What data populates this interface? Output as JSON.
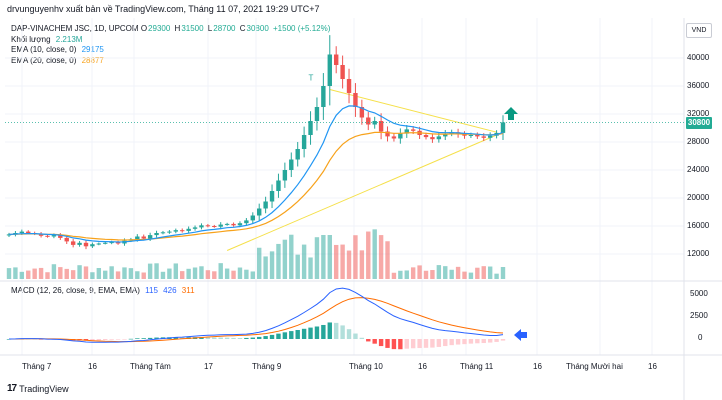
{
  "header": {
    "title": "drvunguyenhv xuất bản về TradingView.com, Tháng 11 07, 2021 19:29 UTC+7"
  },
  "legend": {
    "symbol": "DAP-VINACHEM JSC, 1D, UPCOM",
    "ohlc": [
      {
        "label": "O",
        "value": "29300"
      },
      {
        "label": "H",
        "value": "31500"
      },
      {
        "label": "L",
        "value": "28700"
      },
      {
        "label": "C",
        "value": "30800"
      }
    ],
    "change": "+1500 (+5.12%)",
    "volume_label": "Khối lượng",
    "volume_value": "2.213M",
    "ema10_label": "EMA (10, close, 0)",
    "ema10_value": "29175",
    "ema20_label": "EMA (20, close, 0)",
    "ema20_value": "28877"
  },
  "macd_legend": {
    "label": "MACD (12, 26, close, 9, EMA, EMA)",
    "v1": "115",
    "v2": "426",
    "v3": "311"
  },
  "currency_badge": "VND",
  "last_price": "30800",
  "colors": {
    "up": "#26a69a",
    "down": "#ef5350",
    "ema10": "#2196f3",
    "ema20": "#f7a21b",
    "macd_line": "#2962ff",
    "signal_line": "#ff6d00",
    "triangle": "#f5e04a",
    "arrow_up": "#089981",
    "arrow_left": "#2962ff"
  },
  "chart_data": {
    "type": "candlestick",
    "price_ticks": [
      "40000",
      "36000",
      "32000",
      "28000",
      "24000",
      "20000",
      "16000",
      "12000"
    ],
    "macd_ticks": [
      "5000",
      "2500",
      "0"
    ],
    "x_ticks": [
      "Tháng 7",
      "16",
      "Tháng Tám",
      "17",
      "Tháng 9",
      "Tháng 10",
      "16",
      "Tháng 11",
      "16",
      "Tháng Mười hai",
      "16"
    ],
    "annotation_letter": "T",
    "closes": [
      14800,
      15000,
      15200,
      15000,
      14900,
      14600,
      14500,
      14700,
      14300,
      13800,
      13300,
      13600,
      13100,
      13400,
      13500,
      13600,
      13700,
      13500,
      13900,
      14100,
      14500,
      14200,
      14700,
      15000,
      15100,
      15200,
      15400,
      15300,
      15600,
      15800,
      16100,
      16000,
      15900,
      16200,
      16300,
      16100,
      16400,
      16800,
      17500,
      18500,
      19500,
      21000,
      22500,
      24000,
      25500,
      27000,
      29000,
      31000,
      33000,
      36000,
      40500,
      39000,
      37000,
      35000,
      33000,
      31500,
      30500,
      31000,
      29500,
      28800,
      28500,
      29200,
      29800,
      29600,
      29000,
      28700,
      28400,
      28800,
      29200,
      29400,
      29100,
      28900,
      29000,
      28800,
      28600,
      28900,
      29300,
      30800
    ]
  }
}
